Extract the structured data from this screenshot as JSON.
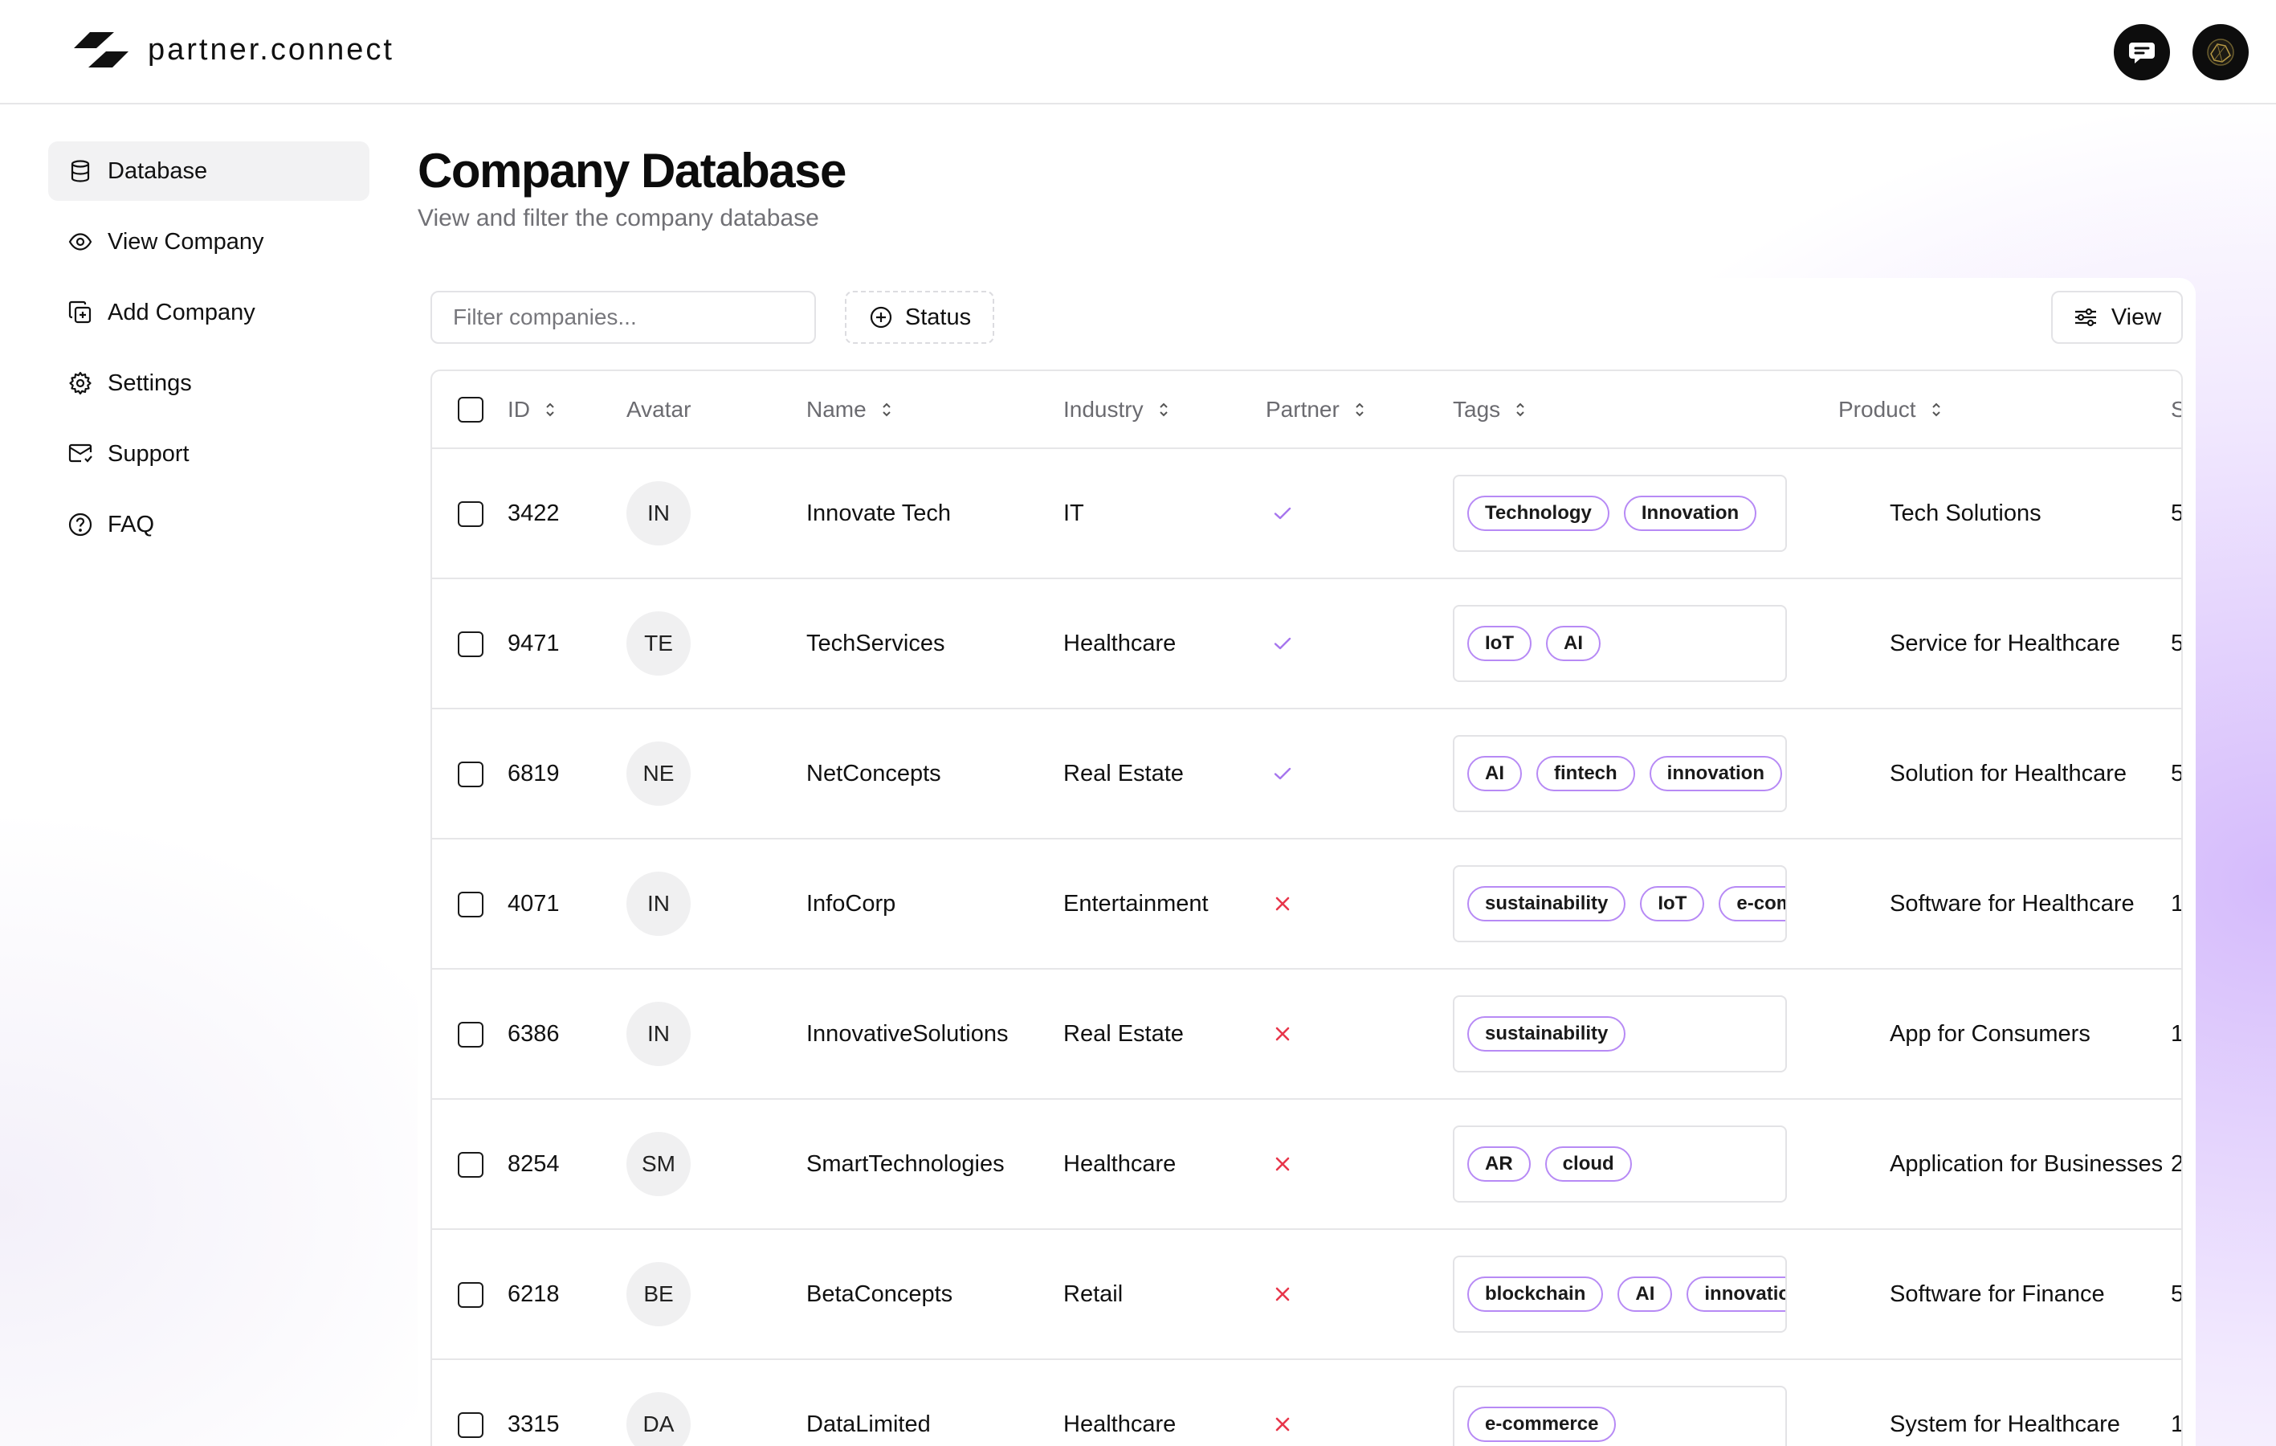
{
  "app": {
    "brand": "partner.connect"
  },
  "sidebar": {
    "items": [
      {
        "label": "Database",
        "icon": "database-icon",
        "active": true
      },
      {
        "label": "View Company",
        "icon": "eye-icon"
      },
      {
        "label": "Add Company",
        "icon": "add-copy-icon"
      },
      {
        "label": "Settings",
        "icon": "gear-icon"
      },
      {
        "label": "Support",
        "icon": "mail-icon"
      },
      {
        "label": "FAQ",
        "icon": "help-circle-icon"
      }
    ]
  },
  "page": {
    "title": "Company Database",
    "subtitle": "View and filter the company database"
  },
  "toolbar": {
    "filter_placeholder": "Filter companies...",
    "status_label": "Status",
    "view_label": "View"
  },
  "table": {
    "columns": {
      "id": "ID",
      "avatar": "Avatar",
      "name": "Name",
      "industry": "Industry",
      "partner": "Partner",
      "tags": "Tags",
      "product": "Product",
      "next": "S"
    },
    "rows": [
      {
        "id": "3422",
        "avatar": "IN",
        "name": "Innovate Tech",
        "industry": "IT",
        "partner": true,
        "tags": [
          "Technology",
          "Innovation"
        ],
        "product": "Tech Solutions",
        "next": "5"
      },
      {
        "id": "9471",
        "avatar": "TE",
        "name": "TechServices",
        "industry": "Healthcare",
        "partner": true,
        "tags": [
          "IoT",
          "AI"
        ],
        "product": "Service for Healthcare",
        "next": "5"
      },
      {
        "id": "6819",
        "avatar": "NE",
        "name": "NetConcepts",
        "industry": "Real Estate",
        "partner": true,
        "tags": [
          "AI",
          "fintech",
          "innovation"
        ],
        "product": "Solution for Healthcare",
        "next": "5"
      },
      {
        "id": "4071",
        "avatar": "IN",
        "name": "InfoCorp",
        "industry": "Entertainment",
        "partner": false,
        "tags": [
          "sustainability",
          "IoT",
          "e-commerce"
        ],
        "product": "Software for Healthcare",
        "next": "1"
      },
      {
        "id": "6386",
        "avatar": "IN",
        "name": "InnovativeSolutions",
        "industry": "Real Estate",
        "partner": false,
        "tags": [
          "sustainability"
        ],
        "product": "App for Consumers",
        "next": "1"
      },
      {
        "id": "8254",
        "avatar": "SM",
        "name": "SmartTechnologies",
        "industry": "Healthcare",
        "partner": false,
        "tags": [
          "AR",
          "cloud"
        ],
        "product": "Application for Businesses",
        "next": "2"
      },
      {
        "id": "6218",
        "avatar": "BE",
        "name": "BetaConcepts",
        "industry": "Retail",
        "partner": false,
        "tags": [
          "blockchain",
          "AI",
          "innovation"
        ],
        "product": "Software for Finance",
        "next": "5"
      },
      {
        "id": "3315",
        "avatar": "DA",
        "name": "DataLimited",
        "industry": "Healthcare",
        "partner": false,
        "tags": [
          "e-commerce"
        ],
        "product": "System for Healthcare",
        "next": "1"
      }
    ]
  },
  "colors": {
    "accent": "#b78af5",
    "check": "#a675ee",
    "cross": "#e8364b"
  }
}
